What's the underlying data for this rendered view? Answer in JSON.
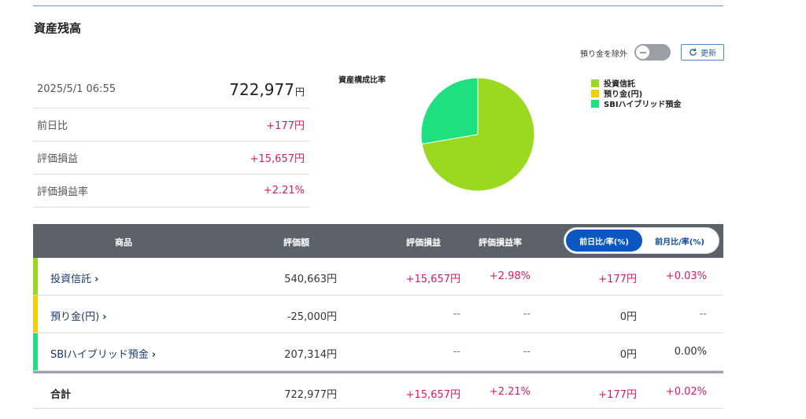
{
  "section_title": "資産残高",
  "exclude_label": "預り金を除外",
  "refresh_label": "更新",
  "summary": {
    "datetime": "2025/5/1 06:55",
    "total_value": "722,977",
    "total_unit": "円",
    "rows": [
      {
        "label": "前日比",
        "value": "+177円"
      },
      {
        "label": "評価損益",
        "value": "+15,657円"
      },
      {
        "label": "評価損益率",
        "value": "+2.21%"
      }
    ]
  },
  "pie": {
    "title": "資産構成比率",
    "legend": [
      {
        "label": "投資信託",
        "color": "#9ad91f"
      },
      {
        "label": "預り金(円)",
        "color": "#f2d000"
      },
      {
        "label": "SBIハイブリッド預金",
        "color": "#1fe081"
      }
    ]
  },
  "chart_data": {
    "type": "pie",
    "title": "資産構成比率",
    "slices": [
      {
        "label": "投資信託",
        "value": 540663,
        "color": "#9ad91f"
      },
      {
        "label": "預り金(円)",
        "value": 0,
        "color": "#f2d000"
      },
      {
        "label": "SBIハイブリッド預金",
        "value": 207314,
        "color": "#1fe081"
      }
    ]
  },
  "table": {
    "headers": {
      "product": "商品",
      "value": "評価額",
      "gain": "評価損益",
      "gain_rate": "評価損益率",
      "toggle_active": "前日比/率(%)",
      "toggle_inactive": "前月比/率(%)"
    },
    "rows": [
      {
        "name": "投資信託",
        "color": "#9ad91f",
        "value": "540,663円",
        "gain": "+15,657円",
        "gain_rate": "+2.98%",
        "diff": "+177円",
        "diff_rate": "+0.03%"
      },
      {
        "name": "預り金(円)",
        "color": "#f2d000",
        "value": "-25,000円",
        "gain": "--",
        "gain_rate": "--",
        "diff": "0円",
        "diff_rate": "--"
      },
      {
        "name": "SBIハイブリッド預金",
        "color": "#1fe081",
        "value": "207,314円",
        "gain": "--",
        "gain_rate": "--",
        "diff": "0円",
        "diff_rate": "0.00%"
      }
    ],
    "total": {
      "name": "合計",
      "value": "722,977円",
      "gain": "+15,657円",
      "gain_rate": "+2.21%",
      "diff": "+177円",
      "diff_rate": "+0.02%"
    }
  }
}
